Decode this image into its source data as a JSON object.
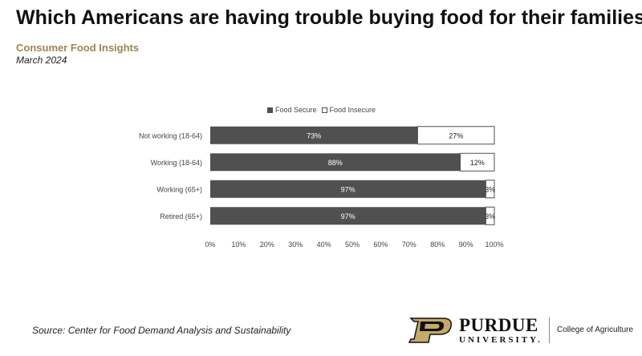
{
  "header": {
    "title": "Which Americans are having trouble buying food for their families?",
    "subtitle": "Consumer Food Insights",
    "date": "March 2024"
  },
  "chart_data": {
    "type": "bar",
    "orientation": "horizontal",
    "stacked": true,
    "categories": [
      "Not working (18-64)",
      "Working (18-64)",
      "Working (65+)",
      "Retired (65+)"
    ],
    "series": [
      {
        "name": "Food Secure",
        "values": [
          73,
          88,
          97,
          97
        ],
        "color": "#505050"
      },
      {
        "name": "Food Insecure",
        "values": [
          27,
          12,
          3,
          3
        ],
        "color": "#ffffff"
      }
    ],
    "value_labels": [
      [
        "73%",
        "88%",
        "97%",
        "97%"
      ],
      [
        "27%",
        "12%",
        "3%",
        "3%"
      ]
    ],
    "xticks": [
      "0%",
      "10%",
      "20%",
      "30%",
      "40%",
      "50%",
      "60%",
      "70%",
      "80%",
      "90%",
      "100%"
    ],
    "xlim": [
      0,
      100
    ],
    "legend_position": "top",
    "grid": false
  },
  "footer": {
    "source": "Source:  Center for Food Demand Analysis and Sustainability",
    "logo_name": "PURDUE",
    "logo_sub": "UNIVERSITY.",
    "college": "College of Agriculture"
  }
}
